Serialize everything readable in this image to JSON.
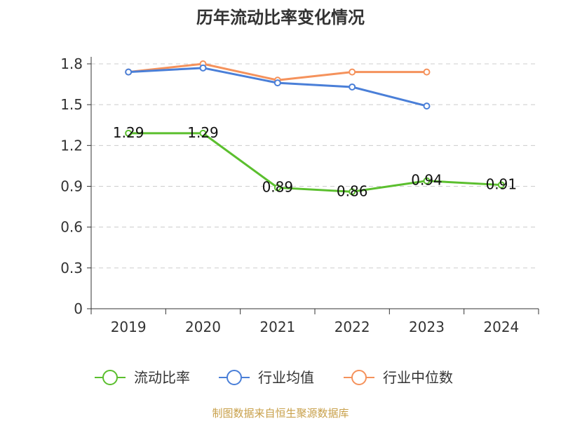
{
  "chart_data": {
    "type": "line",
    "title": "历年流动比率变化情况",
    "categories": [
      "2019",
      "2020",
      "2021",
      "2022",
      "2023",
      "2024"
    ],
    "y_ticks": [
      "0",
      "0.3",
      "0.6",
      "0.9",
      "1.2",
      "1.5",
      "1.8"
    ],
    "ylim": [
      0,
      1.8
    ],
    "grid": true,
    "legend_position": "bottom",
    "series": [
      {
        "name": "流动比率",
        "color": "#5bbf2e",
        "values": [
          1.29,
          1.29,
          0.89,
          0.86,
          0.94,
          0.91
        ],
        "labels": [
          "1.29",
          "1.29",
          "0.89",
          "0.86",
          "0.94",
          "0.91"
        ]
      },
      {
        "name": "行业均值",
        "color": "#4a7fd8",
        "values": [
          1.74,
          1.77,
          1.66,
          1.63,
          1.49,
          null
        ]
      },
      {
        "name": "行业中位数",
        "color": "#f5925c",
        "values": [
          1.74,
          1.8,
          1.68,
          1.74,
          1.74,
          null
        ]
      }
    ],
    "source": "制图数据来自恒生聚源数据库"
  }
}
